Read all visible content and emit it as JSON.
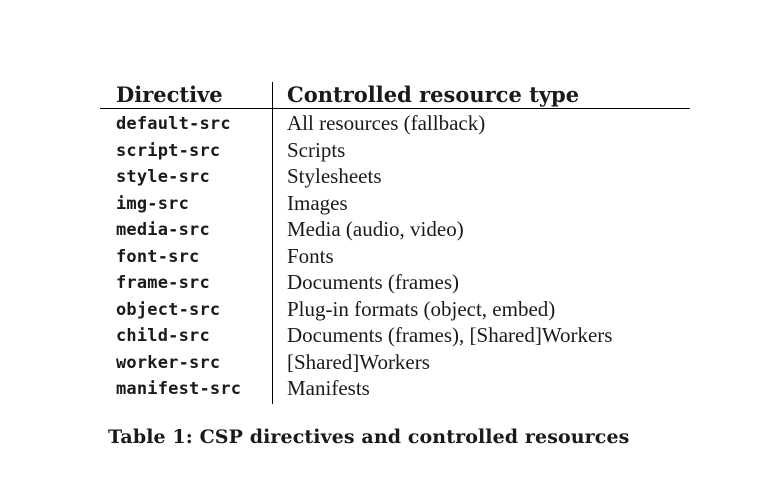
{
  "table": {
    "headers": {
      "directive": "Directive",
      "resource_type": "Controlled resource type"
    },
    "rows": [
      {
        "directive": "default-src",
        "resource_type": "All resources (fallback)"
      },
      {
        "directive": "script-src",
        "resource_type": "Scripts"
      },
      {
        "directive": "style-src",
        "resource_type": "Stylesheets"
      },
      {
        "directive": "img-src",
        "resource_type": "Images"
      },
      {
        "directive": "media-src",
        "resource_type": "Media (audio, video)"
      },
      {
        "directive": "font-src",
        "resource_type": "Fonts"
      },
      {
        "directive": "frame-src",
        "resource_type": "Documents (frames)"
      },
      {
        "directive": "object-src",
        "resource_type": "Plug-in formats (object, embed)"
      },
      {
        "directive": "child-src",
        "resource_type": "Documents (frames), [Shared]Workers"
      },
      {
        "directive": "worker-src",
        "resource_type": "[Shared]Workers"
      },
      {
        "directive": "manifest-src",
        "resource_type": "Manifests"
      }
    ]
  },
  "caption": "Table 1: CSP directives and controlled resources"
}
